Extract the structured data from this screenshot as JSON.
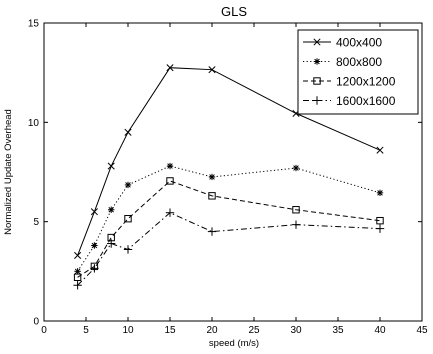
{
  "chart_data": {
    "type": "line",
    "title": "GLS",
    "xlabel": "speed (m/s)",
    "ylabel": "Normalized Update Overhead",
    "xlim": [
      0,
      45
    ],
    "ylim": [
      0,
      15
    ],
    "xticks": [
      0,
      5,
      10,
      15,
      20,
      25,
      30,
      35,
      40,
      45
    ],
    "yticks": [
      0,
      5,
      10,
      15
    ],
    "x": [
      4,
      6,
      8,
      10,
      15,
      20,
      30,
      40
    ],
    "grid": false,
    "legend_position": "top-right",
    "series": [
      {
        "name": "400x400",
        "marker": "x",
        "linestyle": "solid",
        "values": [
          3.3,
          5.5,
          7.8,
          9.5,
          12.75,
          12.65,
          10.45,
          8.6
        ]
      },
      {
        "name": "800x800",
        "marker": "star",
        "linestyle": "dotted",
        "values": [
          2.5,
          3.8,
          5.6,
          6.85,
          7.8,
          7.25,
          7.7,
          6.45
        ]
      },
      {
        "name": "1200x1200",
        "marker": "square",
        "linestyle": "dashed",
        "values": [
          2.2,
          2.75,
          4.2,
          5.15,
          7.05,
          6.3,
          5.6,
          5.05
        ]
      },
      {
        "name": "1600x1600",
        "marker": "plus",
        "linestyle": "dashdot",
        "values": [
          1.8,
          2.65,
          3.9,
          3.6,
          5.45,
          4.5,
          4.85,
          4.65
        ]
      }
    ]
  }
}
